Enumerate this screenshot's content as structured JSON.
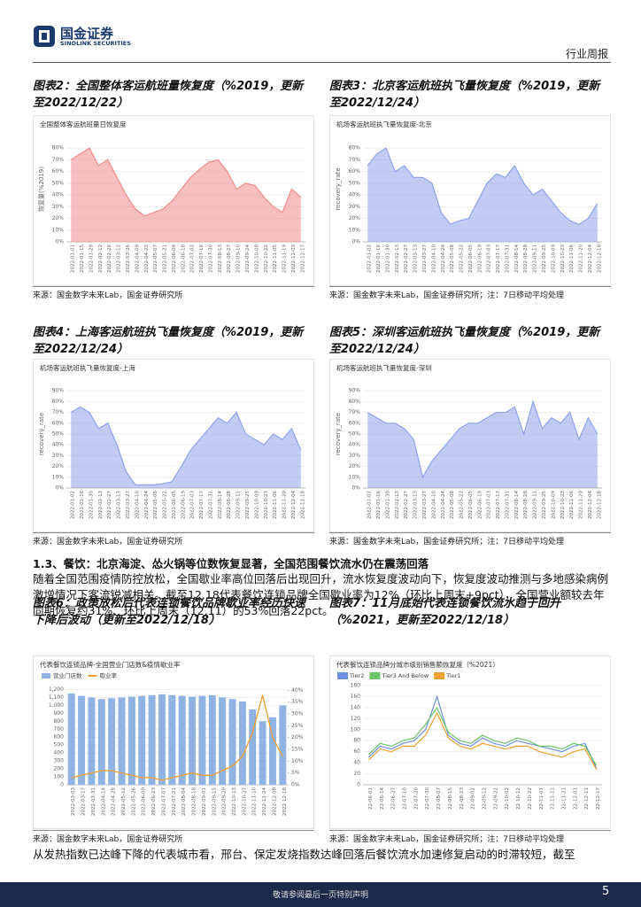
{
  "header": {
    "logo_cn": "国金证券",
    "logo_en": "SINOLINK SECURITIES",
    "section": "行业周报"
  },
  "figures": [
    {
      "title": "图表2：全国整体客运航班量恢复度（%2019，更新至2022/12/22）",
      "source": "来源：国金数字未来Lab，国金证券研究所"
    },
    {
      "title": "图表3：北京客运航班执飞量恢复度（%2019，更新至2022/12/24）",
      "source": "来源：国金数字未来Lab，国金证券研究所；注：7日移动平均处理"
    },
    {
      "title": "图表4：上海客运航班执飞量恢复度（%2019，更新至2022/12/24）",
      "source": "来源：国金数字未来Lab，国金证券研究所"
    },
    {
      "title": "图表5：深圳客运航班执飞量恢复度（%2019，更新至2022/12/24）",
      "source": "来源：国金数字未来Lab，国金证券研究所；注：7日移动平均处理"
    },
    {
      "title": "图表6：政策放松后代表连锁餐饮品牌歇业率经历快速下降后波动（更新至2022/12/18）",
      "source": "来源：国金数字未来Lab，国金证券研究所"
    },
    {
      "title": "图表7：11月底始代表连锁餐饮流水趋于回升（%2021，更新至2022/12/18）",
      "source": "来源：国金数字未来Lab，国金证券研究所；注：7日移动平均处理"
    }
  ],
  "section_heading": "1.3、餐饮：北京海淀、怂火锅等位数恢复显著，全国范围餐饮流水仍在震荡回落",
  "paragraph_1": "随着全国范围疫情防控放松，全国歇业率高位回落后出现回升，流水恢复度波动向下，恢复度波动推测与多地感染病例激增情况下客流锐减相关。截至12.18代表餐饮连锁品牌全国歇业率为12%（环比上周末+9pct），全国营业额较去年同期恢复约31%、环比上周末（12.11）的53%回落22pct。",
  "paragraph_2": "从发热指数已达峰下降的代表城市看，邢台、保定发烧指数达峰回落后餐饮流水加速修复启动的时滞较短，截至",
  "footer": {
    "note": "敬请参阅最后一页特别声明",
    "page": "5"
  },
  "chart_data": [
    {
      "type": "area",
      "title": "全国整体客运航班量日恢复度",
      "y_label": "恢复量(%2019)",
      "color": "#f08a8a",
      "categories": [
        "2022-01-01",
        "2022-01-15",
        "2022-01-29",
        "2022-02-12",
        "2022-02-26",
        "2022-03-12",
        "2022-03-26",
        "2022-04-09",
        "2022-04-23",
        "2022-05-07",
        "2022-05-21",
        "2022-06-04",
        "2022-06-18",
        "2022-07-02",
        "2022-07-16",
        "2022-07-30",
        "2022-08-13",
        "2022-08-27",
        "2022-09-10",
        "2022-09-24",
        "2022-10-08",
        "2022-10-22",
        "2022-11-05",
        "2022-11-19",
        "2022-12-03",
        "2022-12-17"
      ],
      "values": [
        70,
        75,
        80,
        65,
        70,
        55,
        40,
        28,
        22,
        25,
        28,
        35,
        45,
        55,
        62,
        68,
        70,
        60,
        45,
        50,
        48,
        38,
        30,
        25,
        45,
        38
      ],
      "ylim": [
        0,
        90
      ],
      "yticks": [
        {
          "value": 0,
          "label": "0%"
        },
        {
          "value": 10,
          "label": "10%"
        },
        {
          "value": 20,
          "label": "20%"
        },
        {
          "value": 30,
          "label": "30%"
        },
        {
          "value": 40,
          "label": "40%"
        },
        {
          "value": 50,
          "label": "50%"
        },
        {
          "value": 60,
          "label": "60%"
        },
        {
          "value": 70,
          "label": "70%"
        },
        {
          "value": 80,
          "label": "80%"
        }
      ],
      "grid": true
    },
    {
      "type": "area",
      "title": "机场客运航班执飞量恢复度-北京",
      "y_label": "recovery_rate",
      "color": "#8fa3ea",
      "categories": [
        "2022-01-02",
        "2022-01-16",
        "2022-01-30",
        "2022-02-13",
        "2022-02-27",
        "2022-03-13",
        "2022-03-27",
        "2022-04-10",
        "2022-04-24",
        "2022-05-08",
        "2022-05-22",
        "2022-06-05",
        "2022-06-19",
        "2022-07-03",
        "2022-07-17",
        "2022-07-31",
        "2022-08-14",
        "2022-08-28",
        "2022-09-11",
        "2022-09-25",
        "2022-10-09",
        "2022-10-23",
        "2022-11-06",
        "2022-11-20",
        "2022-12-04",
        "2022-12-18"
      ],
      "values": [
        65,
        75,
        80,
        60,
        65,
        55,
        55,
        50,
        25,
        15,
        18,
        20,
        35,
        50,
        58,
        55,
        65,
        50,
        40,
        45,
        35,
        25,
        18,
        15,
        20,
        33
      ],
      "ylim": [
        0,
        90
      ],
      "yticks": [
        {
          "value": 0,
          "label": "0%"
        },
        {
          "value": 10,
          "label": "10%"
        },
        {
          "value": 20,
          "label": "20%"
        },
        {
          "value": 30,
          "label": "30%"
        },
        {
          "value": 40,
          "label": "40%"
        },
        {
          "value": 50,
          "label": "50%"
        },
        {
          "value": 60,
          "label": "60%"
        },
        {
          "value": 70,
          "label": "70%"
        },
        {
          "value": 80,
          "label": "80%"
        }
      ],
      "grid": true
    },
    {
      "type": "area",
      "title": "机场客运航班执飞量恢复度-上海",
      "y_label": "recovery_rate",
      "color": "#8fa3ea",
      "categories": [
        "2022-01-02",
        "2022-01-16",
        "2022-01-30",
        "2022-02-13",
        "2022-02-27",
        "2022-03-13",
        "2022-03-27",
        "2022-04-10",
        "2022-04-24",
        "2022-05-08",
        "2022-05-22",
        "2022-06-05",
        "2022-06-19",
        "2022-07-03",
        "2022-07-17",
        "2022-07-31",
        "2022-08-14",
        "2022-08-28",
        "2022-09-11",
        "2022-09-25",
        "2022-10-09",
        "2022-10-23",
        "2022-11-06",
        "2022-11-20",
        "2022-12-04",
        "2022-12-18"
      ],
      "values": [
        70,
        75,
        70,
        55,
        60,
        40,
        15,
        3,
        3,
        3,
        4,
        6,
        20,
        35,
        45,
        55,
        65,
        60,
        70,
        50,
        45,
        40,
        50,
        45,
        55,
        35
      ],
      "ylim": [
        0,
        100
      ],
      "yticks": [
        {
          "value": 0,
          "label": "0%"
        },
        {
          "value": 10,
          "label": "10%"
        },
        {
          "value": 20,
          "label": "20%"
        },
        {
          "value": 30,
          "label": "30%"
        },
        {
          "value": 40,
          "label": "40%"
        },
        {
          "value": 50,
          "label": "50%"
        },
        {
          "value": 60,
          "label": "60%"
        },
        {
          "value": 70,
          "label": "70%"
        },
        {
          "value": 80,
          "label": "80%"
        },
        {
          "value": 90,
          "label": "90%"
        }
      ],
      "grid": true
    },
    {
      "type": "area",
      "title": "机场客运航班执飞量恢复度-深圳",
      "y_label": "recovery_rate",
      "color": "#8fa3ea",
      "categories": [
        "2022-01-02",
        "2022-01-16",
        "2022-01-30",
        "2022-02-13",
        "2022-02-27",
        "2022-03-13",
        "2022-03-27",
        "2022-04-10",
        "2022-04-24",
        "2022-05-08",
        "2022-05-22",
        "2022-06-05",
        "2022-06-19",
        "2022-07-03",
        "2022-07-17",
        "2022-07-31",
        "2022-08-14",
        "2022-08-28",
        "2022-09-11",
        "2022-09-25",
        "2022-10-09",
        "2022-10-23",
        "2022-11-06",
        "2022-11-20",
        "2022-12-04",
        "2022-12-18"
      ],
      "values": [
        70,
        65,
        60,
        60,
        55,
        45,
        10,
        25,
        35,
        45,
        55,
        60,
        60,
        65,
        70,
        70,
        75,
        50,
        80,
        55,
        65,
        60,
        70,
        45,
        65,
        50
      ],
      "ylim": [
        0,
        100
      ],
      "yticks": [
        {
          "value": 0,
          "label": "0%"
        },
        {
          "value": 10,
          "label": "10%"
        },
        {
          "value": 20,
          "label": "20%"
        },
        {
          "value": 30,
          "label": "30%"
        },
        {
          "value": 40,
          "label": "40%"
        },
        {
          "value": 50,
          "label": "50%"
        },
        {
          "value": 60,
          "label": "60%"
        },
        {
          "value": 70,
          "label": "70%"
        },
        {
          "value": 80,
          "label": "80%"
        },
        {
          "value": 90,
          "label": "90%"
        }
      ],
      "grid": true
    },
    {
      "type": "combo",
      "title": "代表餐饮连锁品牌-全国营业门店数&疫情歇业率",
      "categories": [
        "2022-03-03",
        "2022-03-17",
        "2022-03-31",
        "2022-04-14",
        "2022-04-28",
        "2022-05-12",
        "2022-05-26",
        "2022-06-09",
        "2022-06-23",
        "2022-07-07",
        "2022-07-21",
        "2022-08-04",
        "2022-08-18",
        "2022-09-01",
        "2022-09-15",
        "2022-09-29",
        "2022-10-13",
        "2022-10-27",
        "2022-11-10",
        "2022-11-24",
        "2022-12-08",
        "2022-12-18"
      ],
      "series": [
        {
          "name": "营业门店数",
          "color": "#8fb3e3",
          "values": [
            1150,
            1120,
            1100,
            1080,
            1090,
            1100,
            1110,
            1120,
            1130,
            1140,
            1130,
            1120,
            1110,
            1120,
            1130,
            1100,
            1080,
            1050,
            950,
            800,
            850,
            1000
          ]
        },
        {
          "name": "歇业率",
          "color": "#f0a030",
          "axis": "y2",
          "values": [
            3,
            4,
            5,
            6,
            6,
            5,
            4,
            3,
            3,
            2,
            3,
            4,
            5,
            4,
            4,
            6,
            8,
            12,
            22,
            38,
            20,
            12
          ]
        }
      ],
      "ylim": [
        0,
        1250
      ],
      "yticks": [
        0,
        100,
        200,
        300,
        400,
        500,
        600,
        700,
        800,
        900,
        {
          "value": 1000,
          "label": "1,000"
        },
        {
          "value": 1100,
          "label": "1,100"
        },
        {
          "value": 1200,
          "label": "1,200"
        }
      ],
      "y2lim": [
        0,
        42
      ],
      "y2ticks": [
        {
          "value": 0,
          "label": "0%"
        },
        {
          "value": 5,
          "label": "5%"
        },
        {
          "value": 10,
          "label": "10%"
        },
        {
          "value": 15,
          "label": "15%"
        },
        {
          "value": 20,
          "label": "20%"
        },
        {
          "value": 25,
          "label": "25%"
        },
        {
          "value": 30,
          "label": "30%"
        },
        {
          "value": 35,
          "label": "35%"
        },
        {
          "value": 40,
          "label": "40%"
        }
      ],
      "grid": true
    },
    {
      "type": "line",
      "title": "代表餐饮连锁品牌分城市级别销售额恢复度（%2021）",
      "categories": [
        "22-06-01",
        "22-06-14",
        "22-06-27",
        "22-07-10",
        "22-07-20",
        "22-07-30",
        "22-08-07",
        "22-08-15",
        "22-08-23",
        "22-09-02",
        "22-09-12",
        "22-09-22",
        "22-10-02",
        "22-10-12",
        "22-10-22",
        "22-11-01",
        "22-11-11",
        "22-11-21",
        "22-12-01",
        "22-12-11",
        "22-12-17"
      ],
      "series": [
        {
          "name": "Tier2",
          "color": "#6f8fe0",
          "values": [
            50,
            70,
            65,
            75,
            80,
            100,
            160,
            90,
            75,
            70,
            85,
            75,
            70,
            80,
            75,
            70,
            65,
            60,
            70,
            75,
            30
          ]
        },
        {
          "name": "Tier3 And Below",
          "color": "#6cc46c",
          "values": [
            55,
            75,
            70,
            80,
            85,
            110,
            140,
            95,
            80,
            75,
            90,
            80,
            75,
            85,
            80,
            70,
            70,
            65,
            75,
            70,
            35
          ]
        },
        {
          "name": "Tier1",
          "color": "#f0a030",
          "values": [
            45,
            65,
            60,
            70,
            70,
            90,
            130,
            85,
            70,
            65,
            75,
            70,
            65,
            70,
            70,
            60,
            55,
            50,
            60,
            65,
            28
          ]
        }
      ],
      "ylim": [
        0,
        180
      ],
      "yticks": [
        0,
        20,
        40,
        60,
        80,
        100,
        120,
        140,
        160,
        180
      ],
      "grid": true
    }
  ]
}
